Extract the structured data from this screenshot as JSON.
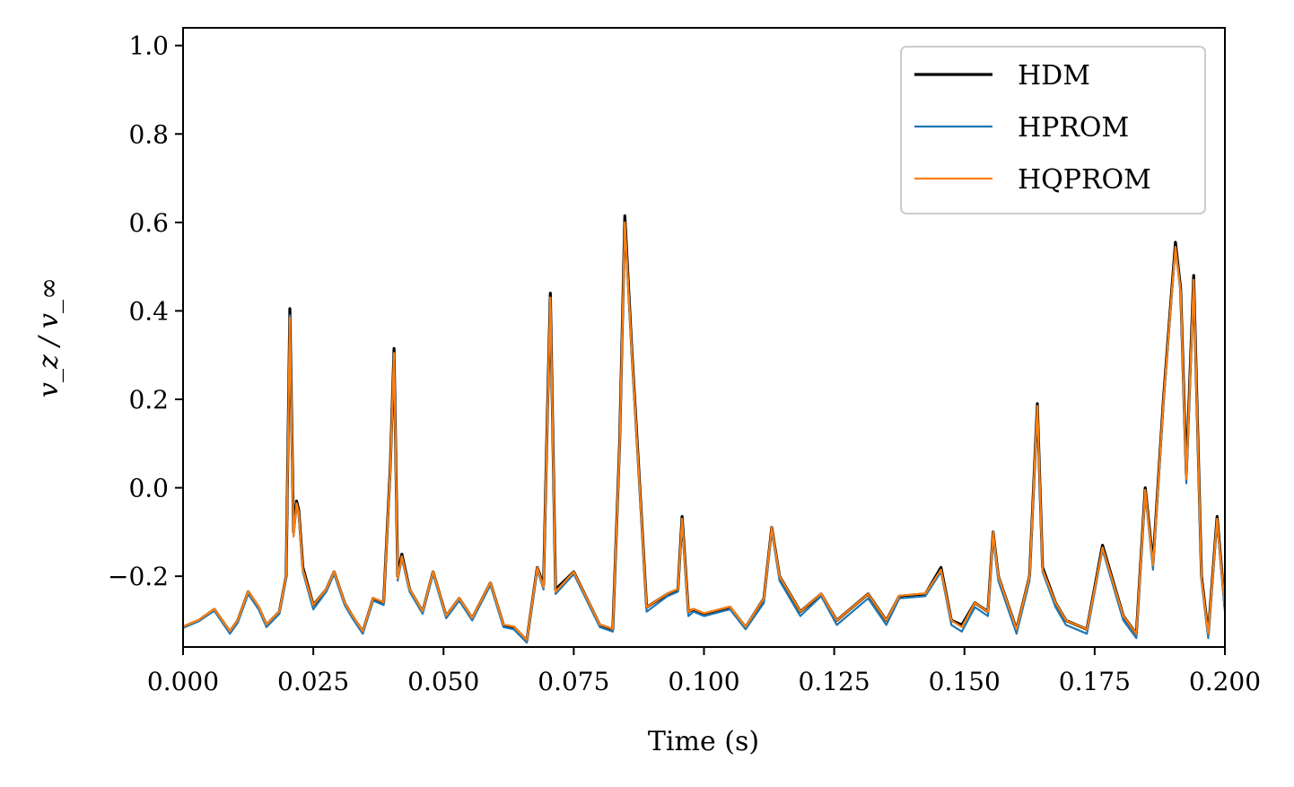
{
  "chart_data": {
    "type": "line",
    "xlabel": "Time (s)",
    "ylabel": "v_z / v_∞",
    "xlim": [
      0,
      0.2
    ],
    "ylim": [
      -0.36,
      1.04
    ],
    "xticks": [
      0,
      0.025,
      0.05,
      0.075,
      0.1,
      0.125,
      0.15,
      0.175,
      0.2
    ],
    "xtick_labels": [
      "0.000",
      "0.025",
      "0.050",
      "0.075",
      "0.100",
      "0.125",
      "0.150",
      "0.175",
      "0.200"
    ],
    "yticks": [
      -0.2,
      0.0,
      0.2,
      0.4,
      0.6,
      0.8,
      1.0
    ],
    "ytick_labels": [
      "−0.2",
      "0.0",
      "0.2",
      "0.4",
      "0.6",
      "0.8",
      "1.0"
    ],
    "grid": false,
    "legend_position": "top-right",
    "x": [
      0,
      0.003,
      0.006,
      0.009,
      0.0105,
      0.0125,
      0.0145,
      0.016,
      0.0185,
      0.0198,
      0.0205,
      0.0212,
      0.0218,
      0.0222,
      0.023,
      0.025,
      0.0275,
      0.029,
      0.031,
      0.0325,
      0.0345,
      0.0365,
      0.0385,
      0.0398,
      0.0405,
      0.0412,
      0.042,
      0.0435,
      0.046,
      0.048,
      0.0505,
      0.053,
      0.0555,
      0.059,
      0.0615,
      0.0635,
      0.066,
      0.068,
      0.0692,
      0.0698,
      0.0705,
      0.0715,
      0.075,
      0.08,
      0.0825,
      0.0838,
      0.0848,
      0.0862,
      0.0872,
      0.089,
      0.093,
      0.095,
      0.0958,
      0.097,
      0.098,
      0.1,
      0.105,
      0.108,
      0.1115,
      0.113,
      0.1145,
      0.1185,
      0.1225,
      0.1255,
      0.1315,
      0.135,
      0.1375,
      0.1425,
      0.1455,
      0.1475,
      0.1495,
      0.152,
      0.1545,
      0.1555,
      0.1565,
      0.16,
      0.1625,
      0.164,
      0.165,
      0.1675,
      0.1695,
      0.1735,
      0.1765,
      0.1805,
      0.183,
      0.1847,
      0.1862,
      0.1882,
      0.1895,
      0.1905,
      0.1915,
      0.1926,
      0.194,
      0.1955,
      0.1968,
      0.1985,
      0.2
    ],
    "series": [
      {
        "name": "HDM",
        "color": "#000000",
        "values": [
          -0.315,
          -0.3,
          -0.275,
          -0.325,
          -0.3,
          -0.235,
          -0.27,
          -0.31,
          -0.28,
          -0.2,
          0.405,
          -0.1,
          -0.03,
          -0.05,
          -0.18,
          -0.265,
          -0.23,
          -0.19,
          -0.26,
          -0.29,
          -0.325,
          -0.25,
          -0.26,
          0.05,
          0.315,
          -0.2,
          -0.15,
          -0.23,
          -0.28,
          -0.19,
          -0.29,
          -0.25,
          -0.295,
          -0.215,
          -0.31,
          -0.315,
          -0.345,
          -0.18,
          -0.22,
          0.1,
          0.44,
          -0.23,
          -0.19,
          -0.31,
          -0.32,
          0.1,
          0.615,
          0.3,
          0.1,
          -0.27,
          -0.24,
          -0.23,
          -0.065,
          -0.28,
          -0.275,
          -0.285,
          -0.27,
          -0.315,
          -0.25,
          -0.09,
          -0.2,
          -0.28,
          -0.24,
          -0.3,
          -0.24,
          -0.3,
          -0.245,
          -0.24,
          -0.18,
          -0.3,
          -0.31,
          -0.26,
          -0.28,
          -0.1,
          -0.2,
          -0.32,
          -0.2,
          0.19,
          -0.18,
          -0.26,
          -0.3,
          -0.32,
          -0.13,
          -0.29,
          -0.33,
          0.0,
          -0.17,
          0.2,
          0.4,
          0.555,
          0.45,
          0.03,
          0.48,
          -0.2,
          -0.33,
          -0.065,
          -0.27
        ]
      },
      {
        "name": "HPROM",
        "color": "#1f77b4",
        "values": [
          -0.317,
          -0.302,
          -0.278,
          -0.33,
          -0.305,
          -0.24,
          -0.275,
          -0.315,
          -0.285,
          -0.205,
          0.39,
          -0.11,
          -0.04,
          -0.06,
          -0.19,
          -0.275,
          -0.235,
          -0.195,
          -0.265,
          -0.295,
          -0.33,
          -0.255,
          -0.265,
          0.04,
          0.305,
          -0.21,
          -0.16,
          -0.235,
          -0.285,
          -0.195,
          -0.295,
          -0.255,
          -0.3,
          -0.22,
          -0.315,
          -0.32,
          -0.35,
          -0.185,
          -0.23,
          0.09,
          0.43,
          -0.24,
          -0.195,
          -0.315,
          -0.325,
          0.09,
          0.6,
          0.29,
          0.09,
          -0.28,
          -0.245,
          -0.235,
          -0.075,
          -0.29,
          -0.28,
          -0.29,
          -0.275,
          -0.32,
          -0.26,
          -0.095,
          -0.21,
          -0.29,
          -0.245,
          -0.31,
          -0.25,
          -0.31,
          -0.25,
          -0.245,
          -0.19,
          -0.31,
          -0.325,
          -0.27,
          -0.29,
          -0.11,
          -0.21,
          -0.33,
          -0.21,
          0.18,
          -0.19,
          -0.27,
          -0.31,
          -0.33,
          -0.14,
          -0.3,
          -0.34,
          -0.01,
          -0.185,
          0.19,
          0.39,
          0.54,
          0.44,
          0.01,
          0.465,
          -0.21,
          -0.34,
          -0.075,
          -0.28
        ]
      },
      {
        "name": "HQPROM",
        "color": "#ff7f0e",
        "values": [
          -0.314,
          -0.299,
          -0.274,
          -0.324,
          -0.299,
          -0.234,
          -0.268,
          -0.309,
          -0.279,
          -0.199,
          0.385,
          -0.11,
          -0.035,
          -0.055,
          -0.185,
          -0.265,
          -0.229,
          -0.189,
          -0.259,
          -0.289,
          -0.324,
          -0.249,
          -0.259,
          0.045,
          0.305,
          -0.205,
          -0.155,
          -0.229,
          -0.279,
          -0.189,
          -0.289,
          -0.249,
          -0.294,
          -0.214,
          -0.309,
          -0.314,
          -0.344,
          -0.18,
          -0.225,
          0.095,
          0.43,
          -0.235,
          -0.19,
          -0.309,
          -0.319,
          0.095,
          0.6,
          0.295,
          0.095,
          -0.27,
          -0.239,
          -0.229,
          -0.07,
          -0.28,
          -0.274,
          -0.284,
          -0.269,
          -0.314,
          -0.25,
          -0.09,
          -0.2,
          -0.28,
          -0.239,
          -0.3,
          -0.24,
          -0.3,
          -0.244,
          -0.239,
          -0.185,
          -0.3,
          -0.315,
          -0.26,
          -0.28,
          -0.1,
          -0.2,
          -0.32,
          -0.2,
          0.185,
          -0.185,
          -0.26,
          -0.3,
          -0.32,
          -0.135,
          -0.29,
          -0.33,
          -0.005,
          -0.175,
          0.195,
          0.395,
          0.545,
          0.445,
          0.02,
          0.47,
          -0.205,
          -0.33,
          -0.07,
          -0.27
        ]
      }
    ]
  }
}
